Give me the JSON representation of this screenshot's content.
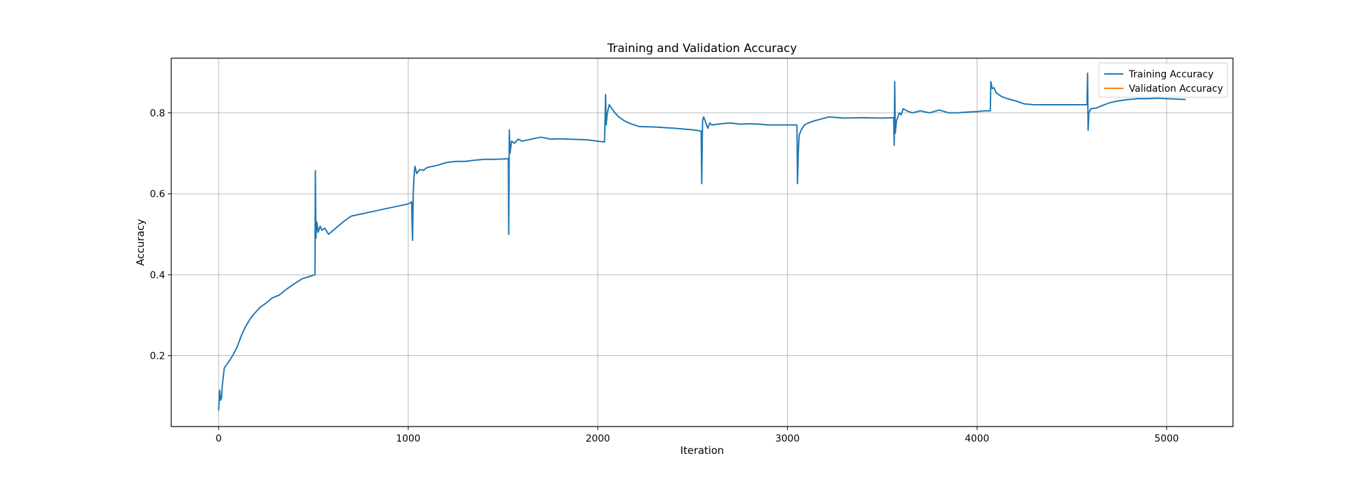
{
  "chart_data": {
    "type": "line",
    "title": "Training and Validation Accuracy",
    "xlabel": "Iteration",
    "ylabel": "Accuracy",
    "xlim": [
      -250,
      5350
    ],
    "ylim": [
      0.025,
      0.935
    ],
    "xticks": [
      0,
      1000,
      2000,
      3000,
      4000,
      5000
    ],
    "yticks": [
      0.2,
      0.4,
      0.6,
      0.8
    ],
    "xtick_labels": [
      "0",
      "1000",
      "2000",
      "3000",
      "4000",
      "5000"
    ],
    "ytick_labels": [
      "0.2",
      "0.4",
      "0.6",
      "0.8"
    ],
    "grid": true,
    "legend_position": "top-right",
    "series": [
      {
        "name": "Training Accuracy",
        "color": "#1f77b4",
        "points": [
          [
            0,
            0.065
          ],
          [
            5,
            0.115
          ],
          [
            10,
            0.09
          ],
          [
            15,
            0.095
          ],
          [
            20,
            0.13
          ],
          [
            30,
            0.17
          ],
          [
            45,
            0.18
          ],
          [
            60,
            0.19
          ],
          [
            80,
            0.205
          ],
          [
            100,
            0.225
          ],
          [
            120,
            0.25
          ],
          [
            140,
            0.27
          ],
          [
            165,
            0.29
          ],
          [
            190,
            0.305
          ],
          [
            220,
            0.32
          ],
          [
            250,
            0.33
          ],
          [
            280,
            0.342
          ],
          [
            320,
            0.35
          ],
          [
            360,
            0.365
          ],
          [
            400,
            0.378
          ],
          [
            440,
            0.39
          ],
          [
            480,
            0.396
          ],
          [
            508,
            0.4
          ],
          [
            510,
            0.657
          ],
          [
            513,
            0.49
          ],
          [
            518,
            0.53
          ],
          [
            525,
            0.505
          ],
          [
            535,
            0.52
          ],
          [
            545,
            0.51
          ],
          [
            560,
            0.515
          ],
          [
            580,
            0.5
          ],
          [
            600,
            0.508
          ],
          [
            630,
            0.52
          ],
          [
            660,
            0.532
          ],
          [
            700,
            0.545
          ],
          [
            750,
            0.55
          ],
          [
            800,
            0.555
          ],
          [
            850,
            0.56
          ],
          [
            900,
            0.565
          ],
          [
            950,
            0.57
          ],
          [
            1000,
            0.575
          ],
          [
            1018,
            0.58
          ],
          [
            1020,
            0.53
          ],
          [
            1023,
            0.485
          ],
          [
            1026,
            0.6
          ],
          [
            1030,
            0.64
          ],
          [
            1035,
            0.668
          ],
          [
            1045,
            0.65
          ],
          [
            1060,
            0.66
          ],
          [
            1080,
            0.658
          ],
          [
            1100,
            0.665
          ],
          [
            1150,
            0.67
          ],
          [
            1200,
            0.677
          ],
          [
            1250,
            0.68
          ],
          [
            1300,
            0.68
          ],
          [
            1350,
            0.683
          ],
          [
            1400,
            0.685
          ],
          [
            1450,
            0.685
          ],
          [
            1500,
            0.686
          ],
          [
            1528,
            0.687
          ],
          [
            1530,
            0.5
          ],
          [
            1533,
            0.758
          ],
          [
            1537,
            0.7
          ],
          [
            1545,
            0.73
          ],
          [
            1560,
            0.725
          ],
          [
            1580,
            0.735
          ],
          [
            1600,
            0.73
          ],
          [
            1650,
            0.735
          ],
          [
            1700,
            0.74
          ],
          [
            1750,
            0.735
          ],
          [
            1800,
            0.736
          ],
          [
            1850,
            0.735
          ],
          [
            1900,
            0.734
          ],
          [
            1950,
            0.733
          ],
          [
            2000,
            0.73
          ],
          [
            2035,
            0.728
          ],
          [
            2038,
            0.78
          ],
          [
            2041,
            0.845
          ],
          [
            2044,
            0.77
          ],
          [
            2050,
            0.8
          ],
          [
            2060,
            0.82
          ],
          [
            2075,
            0.81
          ],
          [
            2090,
            0.8
          ],
          [
            2110,
            0.79
          ],
          [
            2140,
            0.78
          ],
          [
            2180,
            0.772
          ],
          [
            2220,
            0.766
          ],
          [
            2300,
            0.765
          ],
          [
            2400,
            0.762
          ],
          [
            2500,
            0.758
          ],
          [
            2545,
            0.755
          ],
          [
            2548,
            0.625
          ],
          [
            2552,
            0.78
          ],
          [
            2558,
            0.79
          ],
          [
            2570,
            0.775
          ],
          [
            2580,
            0.762
          ],
          [
            2590,
            0.775
          ],
          [
            2600,
            0.77
          ],
          [
            2650,
            0.773
          ],
          [
            2700,
            0.775
          ],
          [
            2750,
            0.772
          ],
          [
            2800,
            0.773
          ],
          [
            2850,
            0.772
          ],
          [
            2900,
            0.77
          ],
          [
            2950,
            0.77
          ],
          [
            3000,
            0.77
          ],
          [
            3050,
            0.77
          ],
          [
            3053,
            0.625
          ],
          [
            3057,
            0.7
          ],
          [
            3062,
            0.745
          ],
          [
            3075,
            0.76
          ],
          [
            3090,
            0.77
          ],
          [
            3110,
            0.775
          ],
          [
            3140,
            0.78
          ],
          [
            3180,
            0.785
          ],
          [
            3220,
            0.79
          ],
          [
            3300,
            0.787
          ],
          [
            3400,
            0.788
          ],
          [
            3500,
            0.787
          ],
          [
            3560,
            0.788
          ],
          [
            3563,
            0.72
          ],
          [
            3566,
            0.877
          ],
          [
            3569,
            0.75
          ],
          [
            3575,
            0.78
          ],
          [
            3590,
            0.8
          ],
          [
            3600,
            0.795
          ],
          [
            3610,
            0.81
          ],
          [
            3630,
            0.805
          ],
          [
            3660,
            0.8
          ],
          [
            3700,
            0.805
          ],
          [
            3750,
            0.8
          ],
          [
            3800,
            0.807
          ],
          [
            3850,
            0.8
          ],
          [
            3900,
            0.8
          ],
          [
            3950,
            0.802
          ],
          [
            4000,
            0.803
          ],
          [
            4040,
            0.805
          ],
          [
            4070,
            0.805
          ],
          [
            4073,
            0.877
          ],
          [
            4080,
            0.86
          ],
          [
            4090,
            0.862
          ],
          [
            4100,
            0.85
          ],
          [
            4130,
            0.84
          ],
          [
            4160,
            0.835
          ],
          [
            4200,
            0.83
          ],
          [
            4250,
            0.822
          ],
          [
            4300,
            0.82
          ],
          [
            4400,
            0.82
          ],
          [
            4500,
            0.82
          ],
          [
            4580,
            0.82
          ],
          [
            4583,
            0.898
          ],
          [
            4586,
            0.757
          ],
          [
            4590,
            0.8
          ],
          [
            4600,
            0.81
          ],
          [
            4630,
            0.812
          ],
          [
            4660,
            0.818
          ],
          [
            4700,
            0.825
          ],
          [
            4750,
            0.83
          ],
          [
            4800,
            0.833
          ],
          [
            4850,
            0.835
          ],
          [
            4900,
            0.835
          ],
          [
            4950,
            0.836
          ],
          [
            5000,
            0.835
          ],
          [
            5050,
            0.834
          ],
          [
            5100,
            0.833
          ]
        ]
      },
      {
        "name": "Validation Accuracy",
        "color": "#ff7f0e",
        "points": []
      }
    ]
  }
}
